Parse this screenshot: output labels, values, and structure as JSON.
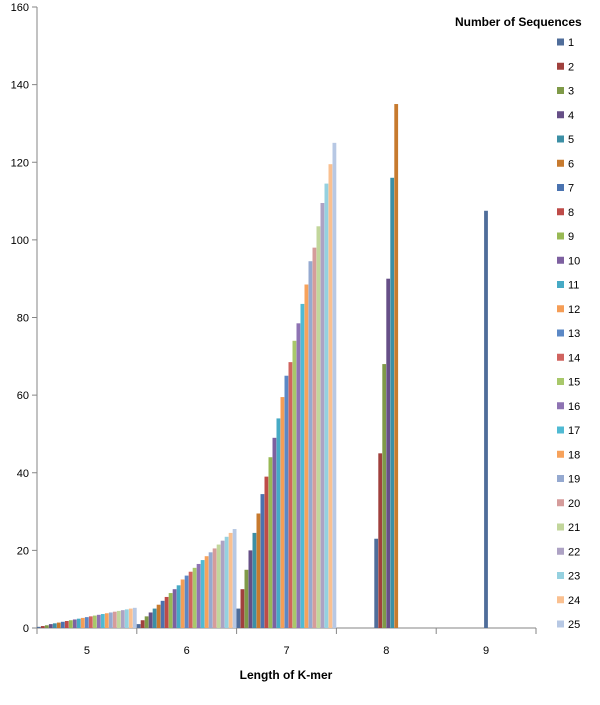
{
  "chart_data": {
    "type": "bar",
    "title": "",
    "xlabel": "Length of K-mer",
    "ylabel": "",
    "ylim": [
      0,
      160
    ],
    "yticks": [
      0,
      20,
      40,
      60,
      80,
      100,
      120,
      140,
      160
    ],
    "grid": false,
    "legend": {
      "title": "Number of Sequences",
      "placement": "right"
    },
    "categories": [
      "5",
      "6",
      "7",
      "8",
      "9"
    ],
    "series": [
      {
        "name": "1",
        "color": "#4F6D9A",
        "values": [
          0.3,
          1.0,
          5.0,
          23.0,
          107.5
        ]
      },
      {
        "name": "2",
        "color": "#A0403D",
        "values": [
          0.5,
          2.0,
          10.0,
          45.0,
          0
        ]
      },
      {
        "name": "3",
        "color": "#7F9A48",
        "values": [
          0.7,
          3.0,
          15.0,
          68.0,
          0
        ]
      },
      {
        "name": "4",
        "color": "#664F87",
        "values": [
          1.0,
          4.0,
          20.0,
          90.0,
          0
        ]
      },
      {
        "name": "5",
        "color": "#3C8FA5",
        "values": [
          1.2,
          5.0,
          24.5,
          116.0,
          0
        ]
      },
      {
        "name": "6",
        "color": "#C77A2E",
        "values": [
          1.4,
          6.0,
          29.5,
          135.0,
          0
        ]
      },
      {
        "name": "7",
        "color": "#4A73B0",
        "values": [
          1.6,
          7.0,
          34.5,
          0,
          0
        ]
      },
      {
        "name": "8",
        "color": "#BE4B48",
        "values": [
          1.8,
          8.0,
          39.0,
          0,
          0
        ]
      },
      {
        "name": "9",
        "color": "#98B954",
        "values": [
          2.0,
          9.0,
          44.0,
          0,
          0
        ]
      },
      {
        "name": "10",
        "color": "#7D60A0",
        "values": [
          2.2,
          10.0,
          49.0,
          0,
          0
        ]
      },
      {
        "name": "11",
        "color": "#46AAC5",
        "values": [
          2.4,
          11.0,
          54.0,
          0,
          0
        ]
      },
      {
        "name": "12",
        "color": "#F59D56",
        "values": [
          2.6,
          12.5,
          59.5,
          0,
          0
        ]
      },
      {
        "name": "13",
        "color": "#5B88C6",
        "values": [
          2.8,
          13.5,
          65.0,
          0,
          0
        ]
      },
      {
        "name": "14",
        "color": "#D0635F",
        "values": [
          3.0,
          14.5,
          68.5,
          0,
          0
        ]
      },
      {
        "name": "15",
        "color": "#A8C86A",
        "values": [
          3.2,
          15.5,
          74.0,
          0,
          0
        ]
      },
      {
        "name": "16",
        "color": "#8E73B3",
        "values": [
          3.4,
          16.5,
          78.5,
          0,
          0
        ]
      },
      {
        "name": "17",
        "color": "#4FBAD3",
        "values": [
          3.6,
          17.5,
          83.5,
          0,
          0
        ]
      },
      {
        "name": "18",
        "color": "#F7A25B",
        "values": [
          3.8,
          18.5,
          88.5,
          0,
          0
        ]
      },
      {
        "name": "19",
        "color": "#95A9D0",
        "values": [
          4.0,
          19.5,
          94.5,
          0,
          0
        ]
      },
      {
        "name": "20",
        "color": "#D59C9B",
        "values": [
          4.2,
          20.5,
          98.0,
          0,
          0
        ]
      },
      {
        "name": "21",
        "color": "#C2D69B",
        "values": [
          4.4,
          21.5,
          103.5,
          0,
          0
        ]
      },
      {
        "name": "22",
        "color": "#ADA2C4",
        "values": [
          4.6,
          22.5,
          109.5,
          0,
          0
        ]
      },
      {
        "name": "23",
        "color": "#95D1E0",
        "values": [
          4.8,
          23.5,
          114.5,
          0,
          0
        ]
      },
      {
        "name": "24",
        "color": "#FAC090",
        "values": [
          5.0,
          24.5,
          119.5,
          0,
          0
        ]
      },
      {
        "name": "25",
        "color": "#B7C8E4",
        "values": [
          5.2,
          25.5,
          125.0,
          0,
          0
        ]
      }
    ]
  }
}
